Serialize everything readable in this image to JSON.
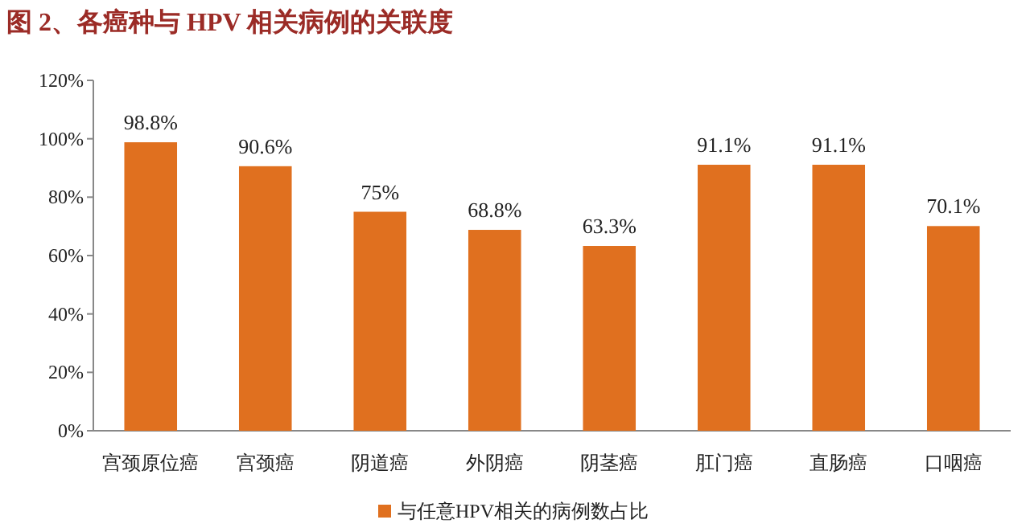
{
  "chart_data": {
    "type": "bar",
    "title": "图 2、各癌种与 HPV 相关病例的关联度",
    "categories": [
      "宫颈原位癌",
      "宫颈癌",
      "阴道癌",
      "外阴癌",
      "阴茎癌",
      "肛门癌",
      "直肠癌",
      "口咽癌"
    ],
    "series": [
      {
        "name": "与任意HPV相关的病例数占比",
        "color": "#e0701f",
        "values": [
          98.8,
          90.6,
          75,
          68.8,
          63.3,
          91.1,
          91.1,
          70.1
        ],
        "value_labels": [
          "98.8%",
          "90.6%",
          "75%",
          "68.8%",
          "63.3%",
          "91.1%",
          "91.1%",
          "70.1%"
        ]
      }
    ],
    "ylim": [
      0,
      120
    ],
    "yticks": [
      {
        "value": 0,
        "label": "0%"
      },
      {
        "value": 20,
        "label": "20%"
      },
      {
        "value": 40,
        "label": "40%"
      },
      {
        "value": 60,
        "label": "60%"
      },
      {
        "value": 80,
        "label": "80%"
      },
      {
        "value": 100,
        "label": "100%"
      },
      {
        "value": 120,
        "label": "120%"
      }
    ],
    "legend": "bottom"
  }
}
